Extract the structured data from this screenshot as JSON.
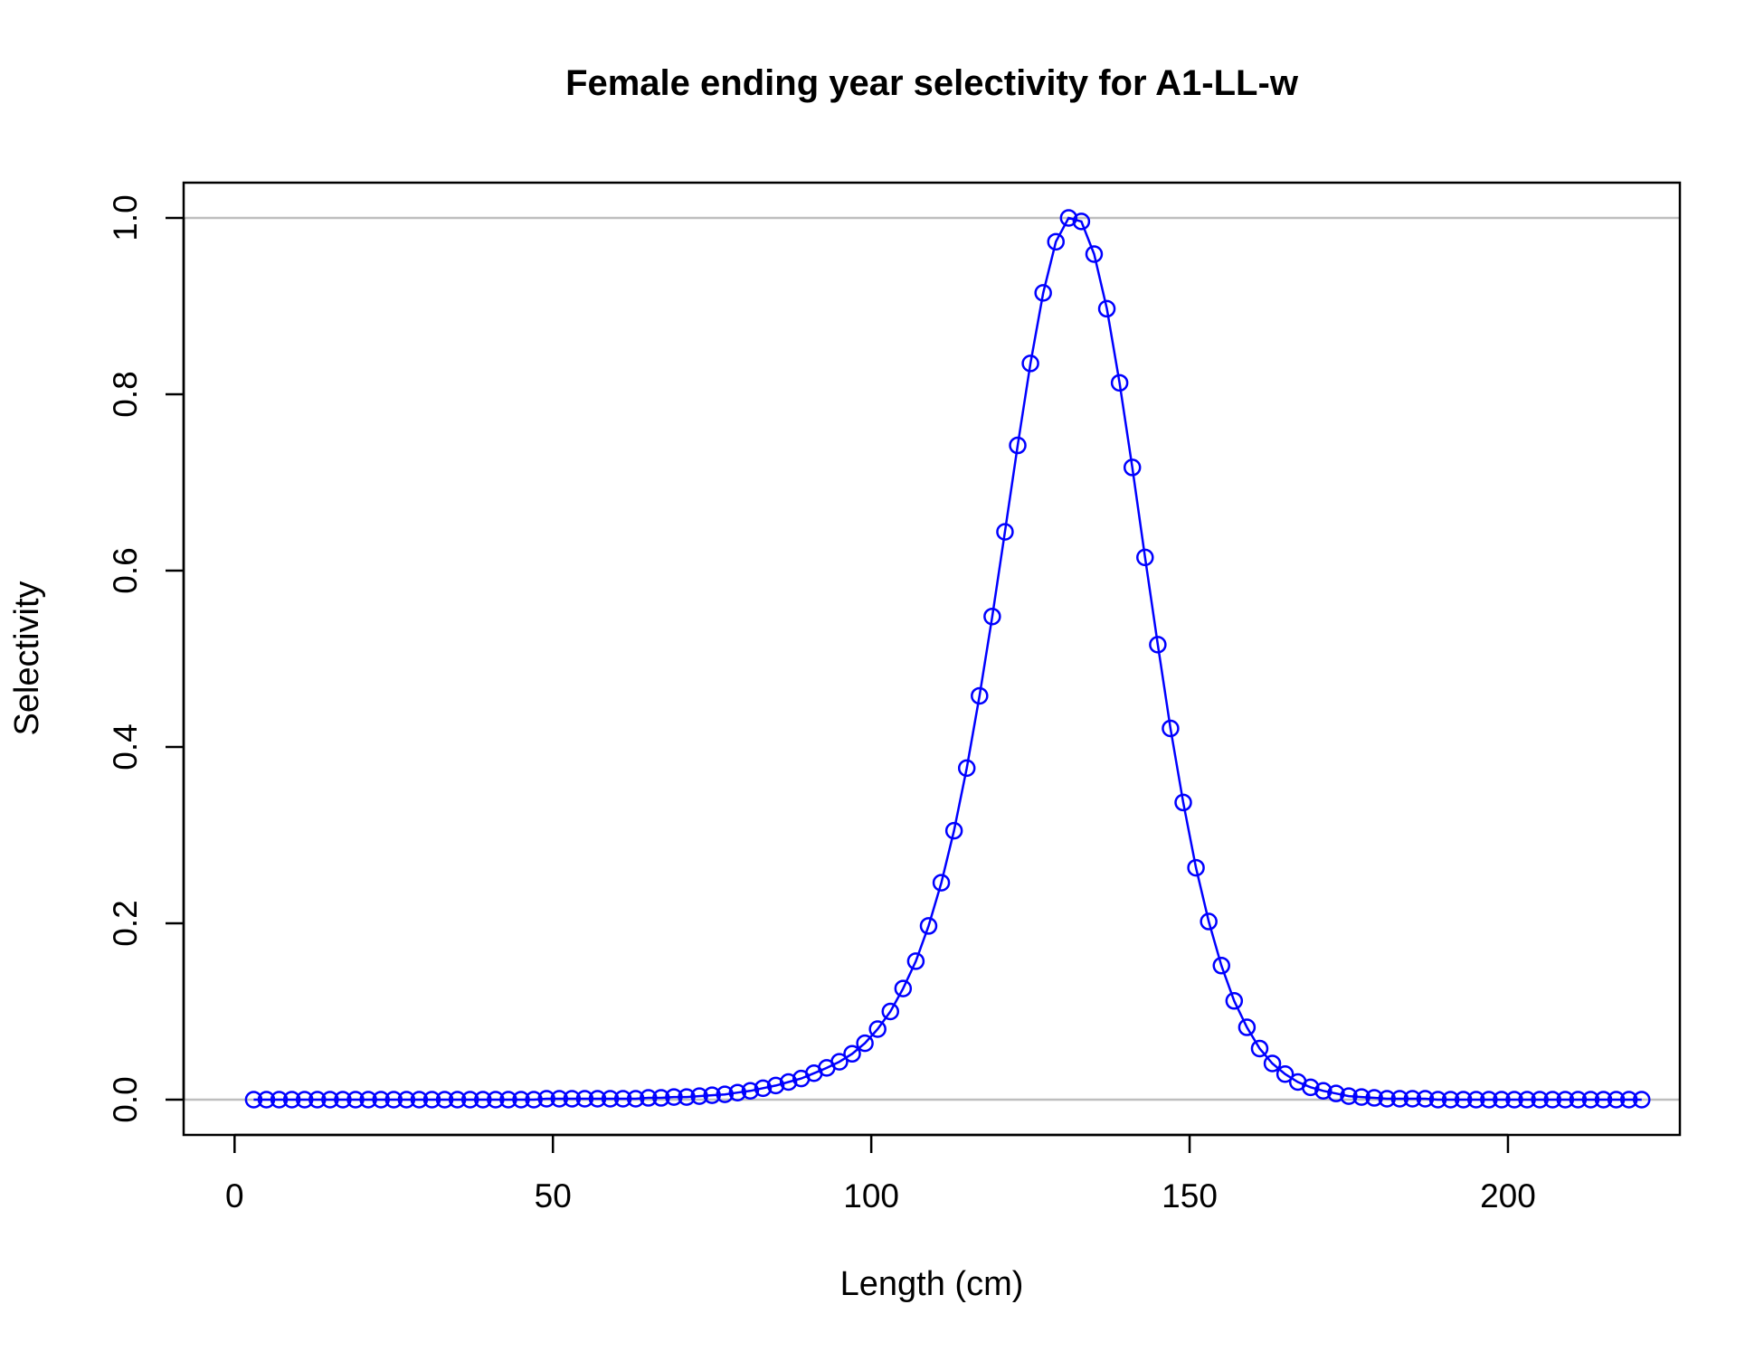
{
  "chart_data": {
    "type": "line",
    "title": "Female ending year selectivity for A1-LL-w",
    "xlabel": "Length (cm)",
    "ylabel": "Selectivity",
    "xlim": [
      -8,
      227
    ],
    "ylim": [
      -0.04,
      1.04
    ],
    "x_ticks": [
      0,
      50,
      100,
      150,
      200
    ],
    "x_tick_labels": [
      "0",
      "50",
      "100",
      "150",
      "200"
    ],
    "y_ticks": [
      0.0,
      0.2,
      0.4,
      0.6,
      0.8,
      1.0
    ],
    "y_tick_labels": [
      "0.0",
      "0.2",
      "0.4",
      "0.6",
      "0.8",
      "1.0"
    ],
    "reference_lines_y": [
      0,
      1
    ],
    "grid": false,
    "legend": "none",
    "colors": {
      "series": "#0000ff",
      "reference": "#bebebe",
      "axis": "#000000"
    },
    "series": [
      {
        "marker": "open-circle",
        "line": true,
        "x": [
          3,
          5,
          7,
          9,
          11,
          13,
          15,
          17,
          19,
          21,
          23,
          25,
          27,
          29,
          31,
          33,
          35,
          37,
          39,
          41,
          43,
          45,
          47,
          49,
          51,
          53,
          55,
          57,
          59,
          61,
          63,
          65,
          67,
          69,
          71,
          73,
          75,
          77,
          79,
          81,
          83,
          85,
          87,
          89,
          91,
          93,
          95,
          97,
          99,
          101,
          103,
          105,
          107,
          109,
          111,
          113,
          115,
          117,
          119,
          121,
          123,
          125,
          127,
          129,
          131,
          133,
          135,
          137,
          139,
          141,
          143,
          145,
          147,
          149,
          151,
          153,
          155,
          157,
          159,
          161,
          163,
          165,
          167,
          169,
          171,
          173,
          175,
          177,
          179,
          181,
          183,
          185,
          187,
          189,
          191,
          193,
          195,
          197,
          199,
          201,
          203,
          205,
          207,
          209,
          211,
          213,
          215,
          217,
          219,
          221
        ],
        "values": [
          0.0,
          0.0,
          0.0,
          0.0,
          0.0,
          0.0,
          0.0,
          0.0,
          0.0,
          0.0,
          0.0,
          0.0,
          0.0,
          0.0,
          0.0,
          0.0,
          0.0,
          0.0,
          0.0,
          0.0,
          0.0,
          0.0,
          0.0,
          0.001,
          0.001,
          0.001,
          0.001,
          0.001,
          0.001,
          0.001,
          0.001,
          0.002,
          0.002,
          0.003,
          0.003,
          0.004,
          0.005,
          0.006,
          0.008,
          0.01,
          0.013,
          0.016,
          0.02,
          0.024,
          0.03,
          0.036,
          0.043,
          0.052,
          0.064,
          0.08,
          0.1,
          0.126,
          0.157,
          0.197,
          0.246,
          0.305,
          0.376,
          0.458,
          0.548,
          0.644,
          0.742,
          0.835,
          0.915,
          0.973,
          1.0,
          0.996,
          0.959,
          0.897,
          0.813,
          0.717,
          0.615,
          0.516,
          0.421,
          0.337,
          0.263,
          0.202,
          0.152,
          0.112,
          0.082,
          0.058,
          0.041,
          0.029,
          0.02,
          0.014,
          0.01,
          0.007,
          0.004,
          0.003,
          0.002,
          0.001,
          0.001,
          0.001,
          0.001,
          0.0,
          0.0,
          0.0,
          0.0,
          0.0,
          0.0,
          0.0,
          0.0,
          0.0,
          0.0,
          0.0,
          0.0,
          0.0,
          0.0,
          0.0,
          0.0,
          0.0
        ]
      }
    ]
  }
}
